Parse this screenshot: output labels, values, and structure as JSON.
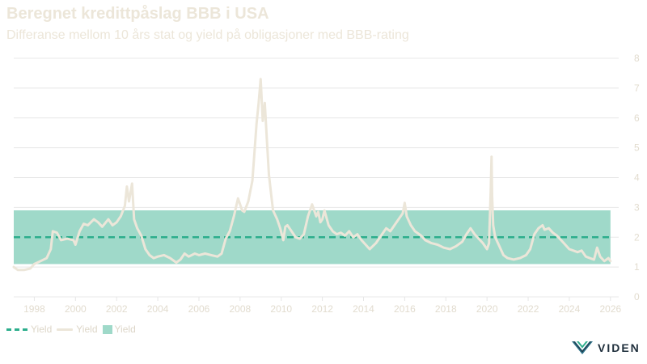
{
  "header": {
    "title": "Beregnet kredittpåslag BBB i USA",
    "subtitle": "Differanse mellom 10 års stat og yield på obligasjoner med BBB-rating"
  },
  "legend": [
    {
      "label": "Yield",
      "style": "dashed-line",
      "color": "#2cae8c"
    },
    {
      "label": "Yield",
      "style": "line",
      "color": "#ece6d9"
    },
    {
      "label": "Yield",
      "style": "band",
      "color": "#9fd9c9"
    }
  ],
  "logo": {
    "text": "VIDEN",
    "icon": "viden-chevron-logo-icon"
  },
  "colors": {
    "series_line": "#ece6d9",
    "mean_line": "#2cae8c",
    "band_fill": "#9fd9c9",
    "gridline": "#e8e8e8",
    "text": "#ece6d9"
  },
  "chart_data": {
    "type": "line",
    "title": "Beregnet kredittpåslag BBB i USA",
    "subtitle": "Differanse mellom 10 års stat og yield på obligasjoner med BBB-rating",
    "xlabel": "",
    "ylabel": "",
    "xlim": [
      1997.0,
      2026.4
    ],
    "ylim": [
      0,
      8
    ],
    "x_ticks": [
      "1998",
      "2000",
      "2002",
      "2004",
      "2006",
      "2008",
      "2010",
      "2012",
      "2014",
      "2016",
      "2018",
      "2020",
      "2022",
      "2024",
      "2026"
    ],
    "y_ticks": [
      0,
      1,
      2,
      3,
      4,
      5,
      6,
      7,
      8
    ],
    "y_axis_position": "right",
    "grid": true,
    "legend_position": "bottom-left",
    "band": {
      "name": "Yield",
      "x_start": 1997.0,
      "x_end": 2026.0,
      "lower": 1.1,
      "upper": 2.9
    },
    "mean_line": {
      "name": "Yield",
      "value": 2.0
    },
    "series": [
      {
        "name": "Yield",
        "x": [
          1997.0,
          1997.2,
          1997.5,
          1997.8,
          1998.0,
          1998.3,
          1998.6,
          1998.8,
          1998.9,
          1999.1,
          1999.3,
          1999.6,
          1999.9,
          2000.0,
          2000.2,
          2000.4,
          2000.6,
          2000.9,
          2001.1,
          2001.3,
          2001.6,
          2001.8,
          2002.0,
          2002.2,
          2002.4,
          2002.5,
          2002.6,
          2002.75,
          2002.85,
          2003.0,
          2003.2,
          2003.4,
          2003.6,
          2003.8,
          2004.0,
          2004.3,
          2004.6,
          2004.9,
          2005.1,
          2005.3,
          2005.5,
          2005.8,
          2006.0,
          2006.3,
          2006.6,
          2006.9,
          2007.1,
          2007.3,
          2007.5,
          2007.7,
          2007.9,
          2008.1,
          2008.2,
          2008.4,
          2008.6,
          2008.8,
          2008.9,
          2009.0,
          2009.05,
          2009.1,
          2009.2,
          2009.3,
          2009.4,
          2009.5,
          2009.6,
          2009.8,
          2009.95,
          2010.1,
          2010.2,
          2010.3,
          2010.5,
          2010.7,
          2010.9,
          2011.1,
          2011.3,
          2011.5,
          2011.7,
          2011.8,
          2011.9,
          2012.0,
          2012.1,
          2012.3,
          2012.5,
          2012.7,
          2012.9,
          2013.1,
          2013.3,
          2013.5,
          2013.7,
          2013.9,
          2014.1,
          2014.3,
          2014.6,
          2014.9,
          2015.1,
          2015.3,
          2015.5,
          2015.7,
          2015.9,
          2016.0,
          2016.1,
          2016.3,
          2016.5,
          2016.8,
          2017.0,
          2017.3,
          2017.6,
          2017.9,
          2018.2,
          2018.5,
          2018.8,
          2019.0,
          2019.2,
          2019.4,
          2019.6,
          2019.8,
          2020.0,
          2020.1,
          2020.18,
          2020.22,
          2020.25,
          2020.3,
          2020.4,
          2020.6,
          2020.8,
          2021.0,
          2021.3,
          2021.6,
          2021.9,
          2022.1,
          2022.3,
          2022.5,
          2022.7,
          2022.8,
          2023.0,
          2023.2,
          2023.4,
          2023.6,
          2023.8,
          2024.0,
          2024.2,
          2024.4,
          2024.6,
          2024.8,
          2025.0,
          2025.2,
          2025.35,
          2025.5,
          2025.7,
          2025.9,
          2026.0
        ],
        "values": [
          1.0,
          0.9,
          0.9,
          0.95,
          1.1,
          1.2,
          1.3,
          1.6,
          2.2,
          2.15,
          1.9,
          1.95,
          1.9,
          1.75,
          2.2,
          2.45,
          2.4,
          2.6,
          2.5,
          2.35,
          2.6,
          2.4,
          2.5,
          2.7,
          3.05,
          3.7,
          3.2,
          3.8,
          2.6,
          2.3,
          2.05,
          1.6,
          1.4,
          1.3,
          1.35,
          1.4,
          1.3,
          1.15,
          1.25,
          1.45,
          1.35,
          1.45,
          1.4,
          1.45,
          1.4,
          1.35,
          1.45,
          1.95,
          2.2,
          2.7,
          3.3,
          2.9,
          2.85,
          3.2,
          3.9,
          5.8,
          6.5,
          7.3,
          6.6,
          5.9,
          6.5,
          5.3,
          4.1,
          3.5,
          2.9,
          2.6,
          2.3,
          1.9,
          2.35,
          2.4,
          2.2,
          2.0,
          1.95,
          2.1,
          2.7,
          3.1,
          2.7,
          2.85,
          2.5,
          2.6,
          2.9,
          2.4,
          2.2,
          2.1,
          2.15,
          2.05,
          2.2,
          2.0,
          2.1,
          1.9,
          1.75,
          1.6,
          1.8,
          2.1,
          2.3,
          2.2,
          2.4,
          2.6,
          2.8,
          3.15,
          2.7,
          2.4,
          2.2,
          2.05,
          1.9,
          1.8,
          1.75,
          1.65,
          1.6,
          1.7,
          1.85,
          2.1,
          2.3,
          2.1,
          1.95,
          1.8,
          1.6,
          1.8,
          3.5,
          4.7,
          3.4,
          2.4,
          2.0,
          1.7,
          1.4,
          1.3,
          1.25,
          1.3,
          1.4,
          1.6,
          2.1,
          2.3,
          2.4,
          2.25,
          2.3,
          2.15,
          2.05,
          1.9,
          1.75,
          1.6,
          1.55,
          1.5,
          1.55,
          1.35,
          1.3,
          1.25,
          1.65,
          1.35,
          1.2,
          1.3,
          1.2
        ]
      }
    ]
  }
}
